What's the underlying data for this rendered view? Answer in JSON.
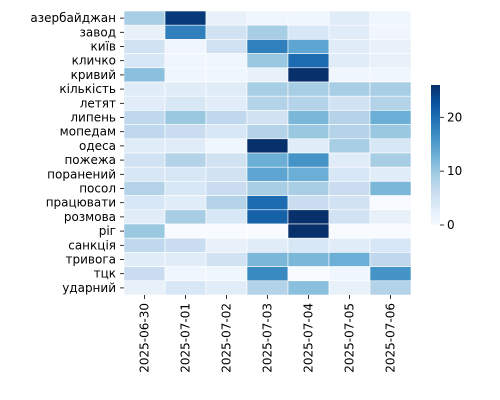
{
  "chart_data": {
    "type": "heatmap",
    "title": "",
    "xlabel": "",
    "ylabel": "",
    "x_categories": [
      "2025-06-30",
      "2025-07-01",
      "2025-07-02",
      "2025-07-03",
      "2025-07-04",
      "2025-07-05",
      "2025-07-06"
    ],
    "y_categories": [
      "азербайджан",
      "завод",
      "київ",
      "кличко",
      "кривий",
      "кількість",
      "летят",
      "липень",
      "мопедам",
      "одеса",
      "пожежа",
      "поранений",
      "посол",
      "працювати",
      "розмова",
      "ріг",
      "санкція",
      "тривога",
      "тцк",
      "ударний"
    ],
    "values": [
      [
        9,
        25,
        2,
        1,
        1,
        3,
        1
      ],
      [
        2,
        18,
        5,
        9,
        4,
        3,
        1
      ],
      [
        5,
        1,
        5,
        18,
        14,
        3,
        2
      ],
      [
        4,
        1,
        1,
        10,
        20,
        3,
        2
      ],
      [
        11,
        1,
        1,
        2,
        26,
        1,
        1
      ],
      [
        3,
        3,
        3,
        9,
        9,
        9,
        9
      ],
      [
        3,
        4,
        3,
        8,
        8,
        5,
        8
      ],
      [
        7,
        10,
        7,
        5,
        12,
        8,
        13
      ],
      [
        7,
        6,
        4,
        8,
        10,
        8,
        10
      ],
      [
        3,
        3,
        1,
        26,
        3,
        9,
        4
      ],
      [
        5,
        8,
        5,
        13,
        16,
        3,
        9
      ],
      [
        4,
        4,
        5,
        14,
        13,
        4,
        3
      ],
      [
        8,
        4,
        6,
        9,
        9,
        6,
        12
      ],
      [
        4,
        3,
        8,
        20,
        6,
        5,
        0
      ],
      [
        3,
        9,
        4,
        21,
        26,
        5,
        2
      ],
      [
        10,
        0,
        0,
        0,
        26,
        0,
        0
      ],
      [
        7,
        6,
        2,
        3,
        4,
        3,
        4
      ],
      [
        3,
        3,
        5,
        12,
        12,
        13,
        7
      ],
      [
        6,
        1,
        1,
        17,
        0,
        1,
        16
      ],
      [
        2,
        4,
        3,
        8,
        11,
        2,
        8
      ]
    ],
    "colorbar": {
      "min": 0,
      "max": 26,
      "ticks": [
        0,
        10,
        20
      ],
      "colormap": "Blues"
    },
    "grid": false,
    "legend_position": "right"
  }
}
